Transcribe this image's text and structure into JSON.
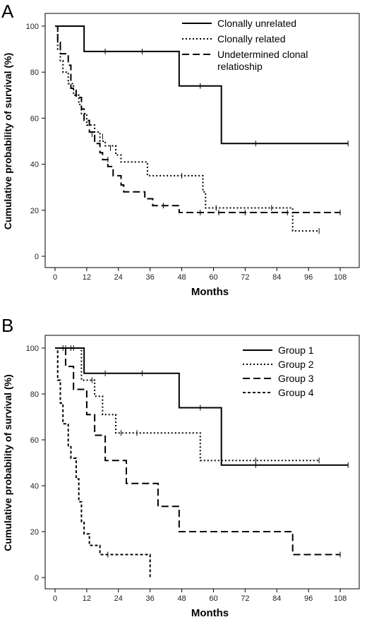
{
  "chart_data": [
    {
      "type": "line",
      "panel_label": "A",
      "xlabel": "Months",
      "ylabel": "Cumulative probability of survival (%)",
      "xlim": [
        0,
        112
      ],
      "ylim": [
        0,
        100
      ],
      "xticks": [
        0,
        12,
        24,
        36,
        48,
        60,
        72,
        84,
        96,
        108
      ],
      "yticks": [
        0,
        20,
        40,
        60,
        80,
        100
      ],
      "legend_position": "top-right",
      "series": [
        {
          "name": "Clonally unrelated",
          "style": "solid",
          "steps": [
            [
              0,
              100
            ],
            [
              11,
              89
            ],
            [
              47,
              74
            ],
            [
              63,
              49
            ],
            [
              111,
              49
            ]
          ],
          "censored": [
            [
              19,
              89
            ],
            [
              33,
              89
            ],
            [
              55,
              74
            ],
            [
              76,
              49
            ],
            [
              111,
              49
            ]
          ]
        },
        {
          "name": "Clonally related",
          "style": "dotted",
          "steps": [
            [
              0,
              100
            ],
            [
              1,
              90
            ],
            [
              2,
              85
            ],
            [
              3,
              80
            ],
            [
              5,
              75
            ],
            [
              7,
              70
            ],
            [
              9,
              66
            ],
            [
              10,
              62
            ],
            [
              12,
              57
            ],
            [
              15,
              54
            ],
            [
              17,
              50
            ],
            [
              19,
              48
            ],
            [
              23,
              44
            ],
            [
              25,
              41
            ],
            [
              35,
              35
            ],
            [
              56,
              28
            ],
            [
              57,
              21
            ],
            [
              90,
              11
            ],
            [
              100,
              11
            ]
          ],
          "censored": [
            [
              18,
              52
            ],
            [
              21,
              47
            ],
            [
              48,
              35
            ],
            [
              61,
              21
            ],
            [
              82,
              21
            ],
            [
              100,
              11
            ]
          ]
        },
        {
          "name": "Undetermined clonal relatioship",
          "style": "dashed",
          "steps": [
            [
              0,
              100
            ],
            [
              1,
              93
            ],
            [
              2,
              88
            ],
            [
              5,
              83
            ],
            [
              6,
              73
            ],
            [
              8,
              69
            ],
            [
              10,
              64
            ],
            [
              11,
              59
            ],
            [
              13,
              54
            ],
            [
              15,
              49
            ],
            [
              17,
              45
            ],
            [
              18,
              42
            ],
            [
              20,
              39
            ],
            [
              22,
              35
            ],
            [
              25,
              31
            ],
            [
              26,
              28
            ],
            [
              34,
              25
            ],
            [
              37,
              22
            ],
            [
              47,
              19
            ],
            [
              108,
              19
            ]
          ],
          "censored": [
            [
              14,
              53
            ],
            [
              20,
              42
            ],
            [
              41,
              22
            ],
            [
              55,
              19
            ],
            [
              62,
              19
            ],
            [
              72,
              19
            ],
            [
              88,
              19
            ],
            [
              108,
              19
            ]
          ]
        }
      ]
    },
    {
      "type": "line",
      "panel_label": "B",
      "xlabel": "Months",
      "ylabel": "Cumulative probability of survival (%)",
      "xlim": [
        0,
        112
      ],
      "ylim": [
        0,
        100
      ],
      "xticks": [
        0,
        12,
        24,
        36,
        48,
        60,
        72,
        84,
        96,
        108
      ],
      "yticks": [
        0,
        20,
        40,
        60,
        80,
        100
      ],
      "legend_position": "top-right",
      "series": [
        {
          "name": "Group 1",
          "style": "solid",
          "steps": [
            [
              0,
              100
            ],
            [
              11,
              89
            ],
            [
              47,
              74
            ],
            [
              63,
              49
            ],
            [
              111,
              49
            ]
          ],
          "censored": [
            [
              4,
              100
            ],
            [
              7,
              100
            ],
            [
              19,
              89
            ],
            [
              33,
              89
            ],
            [
              55,
              74
            ],
            [
              76,
              49
            ],
            [
              111,
              49
            ]
          ]
        },
        {
          "name": "Group 2",
          "style": "dotted",
          "steps": [
            [
              0,
              100
            ],
            [
              10,
              86
            ],
            [
              15,
              79
            ],
            [
              18,
              71
            ],
            [
              23,
              63
            ],
            [
              55,
              51
            ],
            [
              100,
              51
            ]
          ],
          "censored": [
            [
              3,
              100
            ],
            [
              6,
              100
            ],
            [
              14,
              86
            ],
            [
              25,
              63
            ],
            [
              31,
              63
            ],
            [
              76,
              51
            ],
            [
              100,
              51
            ]
          ]
        },
        {
          "name": "Group 3",
          "style": "dashed",
          "steps": [
            [
              0,
              100
            ],
            [
              4,
              92
            ],
            [
              7,
              82
            ],
            [
              12,
              71
            ],
            [
              15,
              62
            ],
            [
              19,
              51
            ],
            [
              27,
              41
            ],
            [
              39,
              31
            ],
            [
              47,
              20
            ],
            [
              90,
              10
            ],
            [
              108,
              10
            ]
          ],
          "censored": [
            [
              108,
              10
            ]
          ]
        },
        {
          "name": "Group 4",
          "style": "dashdot",
          "steps": [
            [
              0,
              100
            ],
            [
              1,
              86
            ],
            [
              2,
              76
            ],
            [
              3,
              67
            ],
            [
              5,
              57
            ],
            [
              6,
              52
            ],
            [
              8,
              43
            ],
            [
              9,
              33
            ],
            [
              10,
              24
            ],
            [
              11,
              19
            ],
            [
              13,
              14
            ],
            [
              17,
              10
            ],
            [
              36,
              0
            ]
          ],
          "censored": [
            [
              20,
              10
            ]
          ]
        }
      ]
    }
  ]
}
